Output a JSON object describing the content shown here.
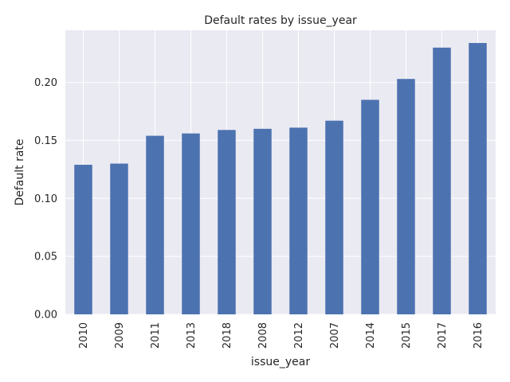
{
  "chart_data": {
    "type": "bar",
    "title": "Default rates by issue_year",
    "xlabel": "issue_year",
    "ylabel": "Default rate",
    "categories": [
      "2010",
      "2009",
      "2011",
      "2013",
      "2018",
      "2008",
      "2012",
      "2007",
      "2014",
      "2015",
      "2017",
      "2016"
    ],
    "values": [
      0.129,
      0.13,
      0.154,
      0.156,
      0.159,
      0.16,
      0.161,
      0.167,
      0.185,
      0.203,
      0.23,
      0.234
    ],
    "ylim": [
      0,
      0.245
    ],
    "yticks": [
      0.0,
      0.05,
      0.1,
      0.15,
      0.2
    ],
    "ytick_labels": [
      "0.00",
      "0.05",
      "0.10",
      "0.15",
      "0.20"
    ],
    "grid": true,
    "legend": "none",
    "colors": {
      "bar": "#4c72b0",
      "background": "#eaeaf2",
      "grid": "#ffffff"
    }
  }
}
